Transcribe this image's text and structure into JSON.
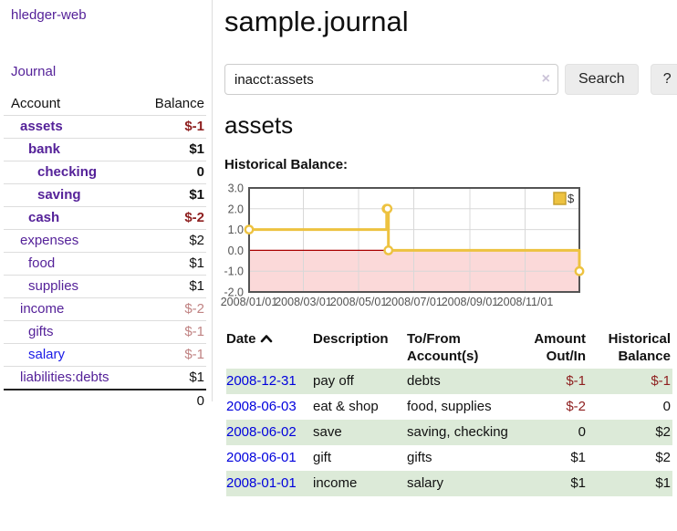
{
  "app": {
    "brand": "hledger-web",
    "nav_journal": "Journal"
  },
  "sidebar": {
    "header": {
      "account": "Account",
      "balance": "Balance"
    },
    "accounts": [
      {
        "name": "assets",
        "balance": "$-1"
      },
      {
        "name": "bank",
        "balance": "$1"
      },
      {
        "name": "checking",
        "balance": "0"
      },
      {
        "name": "saving",
        "balance": "$1"
      },
      {
        "name": "cash",
        "balance": "$-2"
      },
      {
        "name": "expenses",
        "balance": "$2"
      },
      {
        "name": "food",
        "balance": "$1"
      },
      {
        "name": "supplies",
        "balance": "$1"
      },
      {
        "name": "income",
        "balance": "$-2"
      },
      {
        "name": "gifts",
        "balance": "$-1"
      },
      {
        "name": "salary",
        "balance": "$-1"
      },
      {
        "name": "liabilities:debts",
        "balance": "$1"
      }
    ],
    "total": "0"
  },
  "main": {
    "title": "sample.journal",
    "search": {
      "value": "inacct:assets",
      "clear_icon": "×",
      "button": "Search",
      "help": "?"
    },
    "account_heading": "assets",
    "chart_heading": "Historical Balance:"
  },
  "chart_data": {
    "type": "line",
    "title": "Historical Balance:",
    "step": true,
    "series": [
      {
        "name": "$",
        "color": "#edc240",
        "points": [
          [
            "2008-01-01",
            1
          ],
          [
            "2008-06-01",
            2
          ],
          [
            "2008-06-02",
            2
          ],
          [
            "2008-06-03",
            0
          ],
          [
            "2008-12-31",
            -1
          ]
        ]
      }
    ],
    "xrange": [
      "2008-01-01",
      "2008-12-31"
    ],
    "ylim": [
      -2,
      3
    ],
    "yticks": [
      3.0,
      2.0,
      1.0,
      0.0,
      -1.0,
      -2.0
    ],
    "xticks": [
      "2008/01/01",
      "2008/03/01",
      "2008/05/01",
      "2008/07/01",
      "2008/09/01",
      "2008/11/01"
    ],
    "legend": [
      {
        "label": "$",
        "color": "#edc240"
      }
    ],
    "legend_position": "top-right",
    "grid": true,
    "negative_region_fill": "#fbd9d9",
    "zero_line_color": "#aa0000",
    "border_color": "#545454",
    "gridline_color": "#d8d8d8"
  },
  "register": {
    "headers": [
      "Date",
      "Description",
      "To/From Account(s)",
      "Amount Out/In",
      "Historical Balance"
    ],
    "rows": [
      {
        "date": "2008-12-31",
        "description": "pay off",
        "accounts": "debts",
        "amount": "$-1",
        "balance": "$-1"
      },
      {
        "date": "2008-06-03",
        "description": "eat & shop",
        "accounts": "food, supplies",
        "amount": "$-2",
        "balance": "0"
      },
      {
        "date": "2008-06-02",
        "description": "save",
        "accounts": "saving, checking",
        "amount": "0",
        "balance": "$2"
      },
      {
        "date": "2008-06-01",
        "description": "gift",
        "accounts": "gifts",
        "amount": "$1",
        "balance": "$2"
      },
      {
        "date": "2008-01-01",
        "description": "income",
        "accounts": "salary",
        "amount": "$1",
        "balance": "$1"
      }
    ]
  }
}
